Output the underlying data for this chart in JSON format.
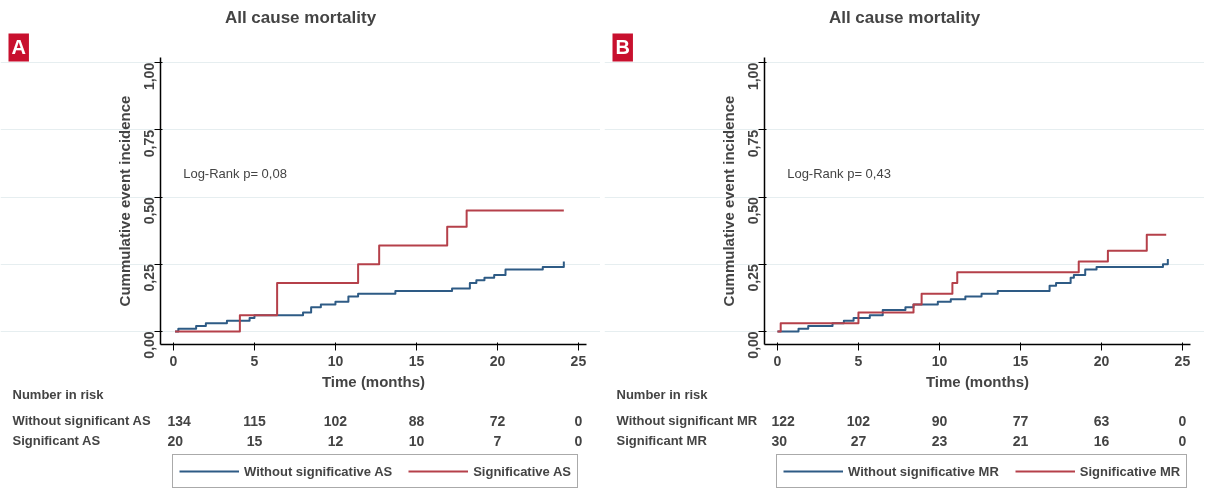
{
  "chart_data": [
    {
      "type": "step",
      "title": "All cause mortality",
      "xlabel": "Time (months)",
      "ylabel": "Cummulative event incidence",
      "annotations": [
        "A",
        "Log-Rank p= 0,08",
        "Number in risk",
        "Without significant AS",
        "134",
        "115",
        "102",
        "88",
        "72",
        "0",
        "Significant AS",
        "20",
        "15",
        "12",
        "10",
        "7",
        "0"
      ],
      "xlim": [
        -0.8,
        25.5
      ],
      "ylim": [
        -0.05,
        1.02
      ],
      "xticks": [
        0,
        5,
        10,
        15,
        20,
        25
      ],
      "yticks": [
        {
          "value": 0,
          "label": "0,00"
        },
        {
          "value": 0.25,
          "label": "0,25"
        },
        {
          "value": 0.5,
          "label": "0,50"
        },
        {
          "value": 0.75,
          "label": "0,75"
        },
        {
          "value": 1,
          "label": "1,00"
        }
      ],
      "grid": "y",
      "legend": "bottom",
      "line_style": "solid",
      "marker": "none",
      "series": [
        {
          "name": "Without significative AS",
          "color": "#2e5b85",
          "x": [
            0.1,
            0.3,
            1.4,
            2,
            3.3,
            4.7,
            5,
            6.3,
            8,
            8.5,
            9.1,
            10,
            10.8,
            11.4,
            11.6,
            13.7,
            17.2,
            18.3,
            18.7,
            19.2,
            19.8,
            20.5,
            22.8,
            24.1
          ],
          "values": [
            0,
            0.01,
            0.02,
            0.03,
            0.04,
            0.05,
            0.06,
            0.06,
            0.07,
            0.09,
            0.1,
            0.11,
            0.13,
            0.14,
            0.14,
            0.15,
            0.16,
            0.18,
            0.19,
            0.2,
            0.21,
            0.23,
            0.24,
            0.26
          ]
        },
        {
          "name": "Significative AS",
          "color": "#b5404a",
          "x": [
            0.1,
            4.1,
            6.4,
            11.4,
            12.7,
            16.9,
            18.1,
            24.1
          ],
          "values": [
            0,
            0.06,
            0.18,
            0.25,
            0.32,
            0.39,
            0.45,
            0.45
          ]
        }
      ]
    },
    {
      "type": "step",
      "title": "All cause mortality",
      "xlabel": "Time (months)",
      "ylabel": "Cummulative event incidence",
      "annotations": [
        "B",
        "Log-Rank p= 0,43",
        "Number in risk",
        "Without significant MR",
        "122",
        "102",
        "90",
        "77",
        "63",
        "0",
        "Significant MR",
        "30",
        "27",
        "23",
        "21",
        "16",
        "0"
      ],
      "xlim": [
        -0.8,
        25.5
      ],
      "ylim": [
        -0.05,
        1.02
      ],
      "xticks": [
        0,
        5,
        10,
        15,
        20,
        25
      ],
      "yticks": [
        {
          "value": 0,
          "label": "0,00"
        },
        {
          "value": 0.25,
          "label": "0,25"
        },
        {
          "value": 0.5,
          "label": "0,50"
        },
        {
          "value": 0.75,
          "label": "0,75"
        },
        {
          "value": 1,
          "label": "1,00"
        }
      ],
      "grid": "y",
      "legend": "bottom",
      "line_style": "solid",
      "marker": "none",
      "series": [
        {
          "name": "Without significative MR",
          "color": "#2e5b85",
          "x": [
            0,
            1.3,
            1.9,
            3.4,
            4.1,
            4.7,
            5.7,
            6.5,
            7.9,
            8.4,
            9.9,
            10.7,
            11.6,
            12.6,
            13.6,
            16.8,
            17.2,
            18.1,
            18.3,
            19,
            19.7,
            23.8,
            24.1
          ],
          "values": [
            0,
            0.01,
            0.02,
            0.03,
            0.04,
            0.05,
            0.06,
            0.08,
            0.09,
            0.1,
            0.11,
            0.12,
            0.13,
            0.14,
            0.15,
            0.17,
            0.18,
            0.2,
            0.21,
            0.23,
            0.24,
            0.25,
            0.27
          ]
        },
        {
          "name": "Significative MR",
          "color": "#b5404a",
          "x": [
            0,
            0.2,
            5,
            8.4,
            8.9,
            10.8,
            11.1,
            18.6,
            20.4,
            22.8,
            24
          ],
          "values": [
            0,
            0.03,
            0.07,
            0.1,
            0.14,
            0.18,
            0.22,
            0.26,
            0.3,
            0.36,
            0.36
          ]
        }
      ]
    }
  ]
}
